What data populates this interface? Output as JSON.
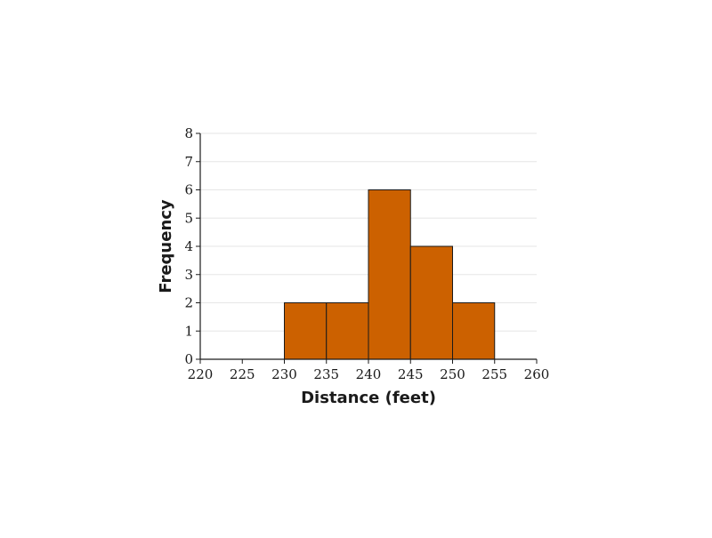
{
  "chart_data": {
    "type": "bar",
    "subtype": "histogram",
    "xlabel": "Distance (feet)",
    "ylabel": "Frequency",
    "xlim": [
      220,
      260
    ],
    "ylim": [
      0,
      8
    ],
    "x_ticks": [
      "220",
      "225",
      "230",
      "235",
      "240",
      "245",
      "250",
      "255",
      "260"
    ],
    "y_ticks": [
      "0",
      "1",
      "2",
      "3",
      "4",
      "5",
      "6",
      "7",
      "8"
    ],
    "bins": [
      {
        "start": 230,
        "end": 235,
        "value": 2
      },
      {
        "start": 235,
        "end": 240,
        "value": 2
      },
      {
        "start": 240,
        "end": 245,
        "value": 6
      },
      {
        "start": 245,
        "end": 250,
        "value": 4
      },
      {
        "start": 250,
        "end": 255,
        "value": 2
      }
    ],
    "grid": "horizontal",
    "bar_color": "#CC6100",
    "bar_edge_color": "#1a1a1a",
    "grid_color": "#e6e6e6"
  }
}
